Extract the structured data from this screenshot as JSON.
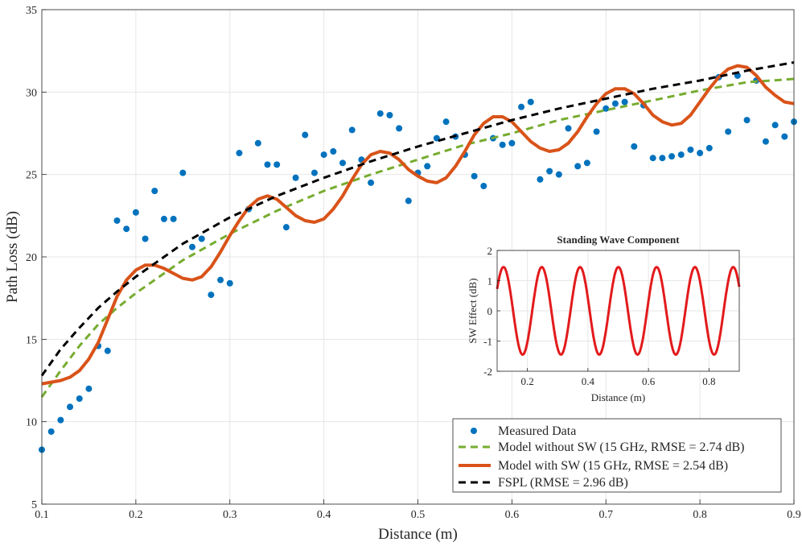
{
  "chart_data": [
    {
      "type": "scatter+line",
      "title": "",
      "xlabel": "Distance (m)",
      "ylabel": "Path Loss (dB)",
      "xlim": [
        0.1,
        0.9
      ],
      "ylim": [
        5,
        35
      ],
      "xticks": [
        0.1,
        0.2,
        0.3,
        0.4,
        0.5,
        0.6,
        0.7,
        0.8,
        0.9
      ],
      "yticks": [
        5,
        10,
        15,
        20,
        25,
        30,
        35
      ],
      "xtick_labels": [
        "0.1",
        "0.2",
        "0.3",
        "0.4",
        "0.5",
        "0.6",
        "0.7",
        "0.8",
        "0.9"
      ],
      "ytick_labels": [
        "5",
        "10",
        "15",
        "20",
        "25",
        "30",
        "35"
      ],
      "grid": true,
      "legend_position": "bottom-right",
      "legend": [
        "Measured Data",
        "Model without SW (15 GHz, RMSE = 2.74 dB)",
        "Model with SW (15 GHz, RMSE = 2.54 dB)",
        "FSPL (RMSE = 2.96 dB)"
      ],
      "colors": {
        "measured": "#0072BD",
        "model_without_sw": "#77AC30",
        "model_with_sw": "#D95319",
        "fspl": "#000000"
      },
      "measured": {
        "name": "Measured Data",
        "x": [
          0.1,
          0.11,
          0.12,
          0.13,
          0.14,
          0.15,
          0.16,
          0.17,
          0.18,
          0.19,
          0.2,
          0.21,
          0.22,
          0.23,
          0.24,
          0.25,
          0.26,
          0.27,
          0.28,
          0.29,
          0.3,
          0.31,
          0.32,
          0.33,
          0.34,
          0.35,
          0.36,
          0.37,
          0.38,
          0.39,
          0.4,
          0.41,
          0.42,
          0.43,
          0.44,
          0.45,
          0.46,
          0.47,
          0.48,
          0.49,
          0.5,
          0.51,
          0.52,
          0.53,
          0.54,
          0.55,
          0.56,
          0.57,
          0.58,
          0.59,
          0.6,
          0.61,
          0.62,
          0.63,
          0.64,
          0.65,
          0.66,
          0.67,
          0.68,
          0.69,
          0.7,
          0.71,
          0.72,
          0.73,
          0.74,
          0.75,
          0.76,
          0.77,
          0.78,
          0.79,
          0.8,
          0.81,
          0.82,
          0.83,
          0.84,
          0.85,
          0.86,
          0.87,
          0.88,
          0.89,
          0.9
        ],
        "y": [
          8.3,
          9.4,
          10.1,
          10.9,
          11.4,
          12.0,
          14.6,
          14.3,
          22.2,
          21.7,
          22.7,
          21.1,
          24.0,
          22.3,
          22.3,
          25.1,
          20.6,
          21.1,
          17.7,
          18.6,
          18.4,
          26.3,
          22.9,
          26.9,
          25.6,
          25.6,
          21.8,
          24.8,
          27.4,
          25.1,
          26.2,
          26.4,
          25.7,
          27.7,
          25.9,
          24.5,
          28.7,
          28.6,
          27.8,
          23.4,
          25.1,
          25.5,
          27.2,
          28.2,
          27.3,
          26.2,
          24.9,
          24.3,
          27.2,
          26.8,
          26.9,
          29.1,
          29.4,
          24.7,
          25.2,
          25.0,
          27.8,
          25.5,
          25.7,
          27.6,
          29.0,
          29.3,
          29.4,
          26.7,
          29.2,
          26.0,
          26.0,
          26.1,
          26.2,
          26.5,
          26.3,
          26.6,
          30.9,
          27.6,
          31.0,
          28.3,
          30.7,
          27.0,
          28.0,
          27.3,
          28.2
        ]
      },
      "series": [
        {
          "name": "Model without SW (15 GHz, RMSE = 2.74 dB)",
          "style": "dashed",
          "x": [
            0.1,
            0.12,
            0.14,
            0.16,
            0.18,
            0.2,
            0.25,
            0.3,
            0.35,
            0.4,
            0.45,
            0.5,
            0.55,
            0.6,
            0.65,
            0.7,
            0.75,
            0.8,
            0.85,
            0.9
          ],
          "y": [
            11.5,
            13.1,
            14.6,
            15.9,
            16.9,
            17.8,
            19.8,
            21.4,
            22.8,
            24.0,
            25.0,
            25.9,
            26.8,
            27.5,
            28.3,
            28.9,
            29.5,
            30.1,
            30.6,
            30.8
          ]
        },
        {
          "name": "Model with SW (15 GHz, RMSE = 2.54 dB)",
          "style": "solid",
          "x": [
            0.1,
            0.12,
            0.13,
            0.14,
            0.15,
            0.16,
            0.17,
            0.18,
            0.19,
            0.2,
            0.21,
            0.22,
            0.23,
            0.24,
            0.25,
            0.26,
            0.27,
            0.28,
            0.29,
            0.3,
            0.31,
            0.32,
            0.33,
            0.34,
            0.35,
            0.36,
            0.37,
            0.38,
            0.39,
            0.4,
            0.41,
            0.42,
            0.43,
            0.44,
            0.45,
            0.46,
            0.47,
            0.48,
            0.49,
            0.5,
            0.51,
            0.52,
            0.53,
            0.54,
            0.55,
            0.56,
            0.57,
            0.58,
            0.59,
            0.6,
            0.61,
            0.62,
            0.63,
            0.64,
            0.65,
            0.66,
            0.67,
            0.68,
            0.69,
            0.7,
            0.71,
            0.72,
            0.73,
            0.74,
            0.75,
            0.76,
            0.77,
            0.78,
            0.79,
            0.8,
            0.81,
            0.82,
            0.83,
            0.84,
            0.85,
            0.86,
            0.87,
            0.88,
            0.89,
            0.9
          ],
          "y": [
            12.3,
            12.5,
            12.7,
            13.1,
            13.8,
            14.8,
            16.2,
            17.6,
            18.6,
            19.2,
            19.5,
            19.5,
            19.3,
            19.0,
            18.7,
            18.6,
            18.8,
            19.4,
            20.3,
            21.3,
            22.2,
            23.0,
            23.5,
            23.7,
            23.5,
            23.0,
            22.5,
            22.2,
            22.1,
            22.3,
            22.9,
            23.7,
            24.7,
            25.6,
            26.2,
            26.4,
            26.3,
            25.9,
            25.3,
            24.9,
            24.6,
            24.5,
            24.8,
            25.5,
            26.4,
            27.4,
            28.1,
            28.5,
            28.5,
            28.2,
            27.6,
            27.0,
            26.6,
            26.4,
            26.5,
            26.9,
            27.6,
            28.5,
            29.3,
            29.9,
            30.2,
            30.2,
            29.9,
            29.3,
            28.6,
            28.2,
            28.0,
            28.1,
            28.6,
            29.4,
            30.2,
            30.9,
            31.4,
            31.6,
            31.5,
            31.0,
            30.3,
            29.8,
            29.4,
            29.3
          ]
        },
        {
          "name": "FSPL (RMSE = 2.96 dB)",
          "style": "dashed",
          "x": [
            0.1,
            0.12,
            0.14,
            0.16,
            0.18,
            0.2,
            0.25,
            0.3,
            0.35,
            0.4,
            0.45,
            0.5,
            0.55,
            0.6,
            0.65,
            0.7,
            0.75,
            0.8,
            0.85,
            0.9
          ],
          "y": [
            12.8,
            14.4,
            15.7,
            16.9,
            17.9,
            18.8,
            20.8,
            22.4,
            23.7,
            24.8,
            25.8,
            26.7,
            27.5,
            28.3,
            29.0,
            29.6,
            30.2,
            30.7,
            31.3,
            31.8
          ]
        }
      ]
    },
    {
      "type": "line",
      "title": "Standing Wave Component",
      "xlabel": "Distance (m)",
      "ylabel": "SW Effect (dB)",
      "xlim": [
        0.1,
        0.9
      ],
      "ylim": [
        -2,
        2
      ],
      "xticks": [
        0.2,
        0.4,
        0.6,
        0.8
      ],
      "yticks": [
        -2,
        -1,
        0,
        1,
        2
      ],
      "xtick_labels": [
        "0.2",
        "0.4",
        "0.6",
        "0.8"
      ],
      "ytick_labels": [
        "-2",
        "-1",
        "0",
        "1",
        "2"
      ],
      "grid": true,
      "colors": {
        "line": "#E31A1C"
      },
      "series": [
        {
          "name": "SW Effect",
          "amplitude": 1.45,
          "period": 0.1265,
          "phase_deg": 30,
          "x_start": 0.1,
          "x_end": 0.9,
          "samples": 400
        }
      ]
    }
  ]
}
